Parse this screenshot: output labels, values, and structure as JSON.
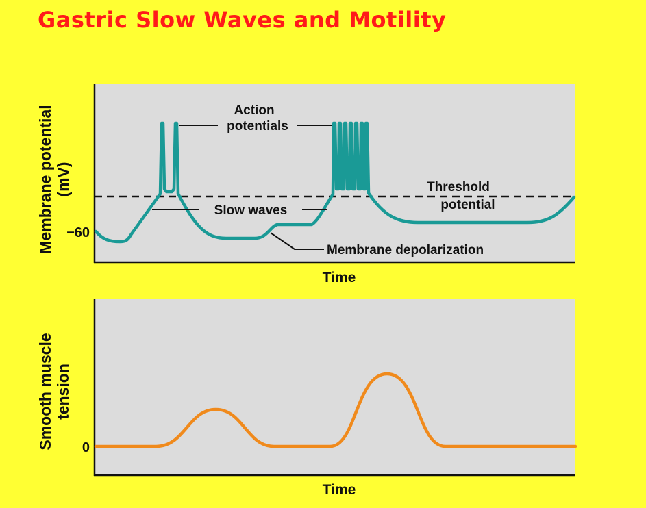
{
  "slide": {
    "title": "Gastric Slow Waves and Motility"
  },
  "top_panel": {
    "ylabel_line1": "Membrane potential",
    "ylabel_line2": "(mV)",
    "ytick": "−60",
    "xlabel": "Time",
    "annotations": {
      "action_potentials_line1": "Action",
      "action_potentials_line2": "potentials",
      "threshold_line1": "Threshold",
      "threshold_line2": "potential",
      "slow_waves": "Slow waves",
      "membrane_depolarization": "Membrane depolarization"
    }
  },
  "bottom_panel": {
    "ylabel_line1": "Smooth muscle",
    "ylabel_line2": "tension",
    "ytick": "0",
    "xlabel": "Time"
  },
  "colors": {
    "background": "#ffff33",
    "title": "#ff1a1a",
    "panel": "#dcdcdc",
    "membrane_trace": "#1a9a96",
    "tension_trace": "#f08a1c",
    "text": "#111111"
  }
}
